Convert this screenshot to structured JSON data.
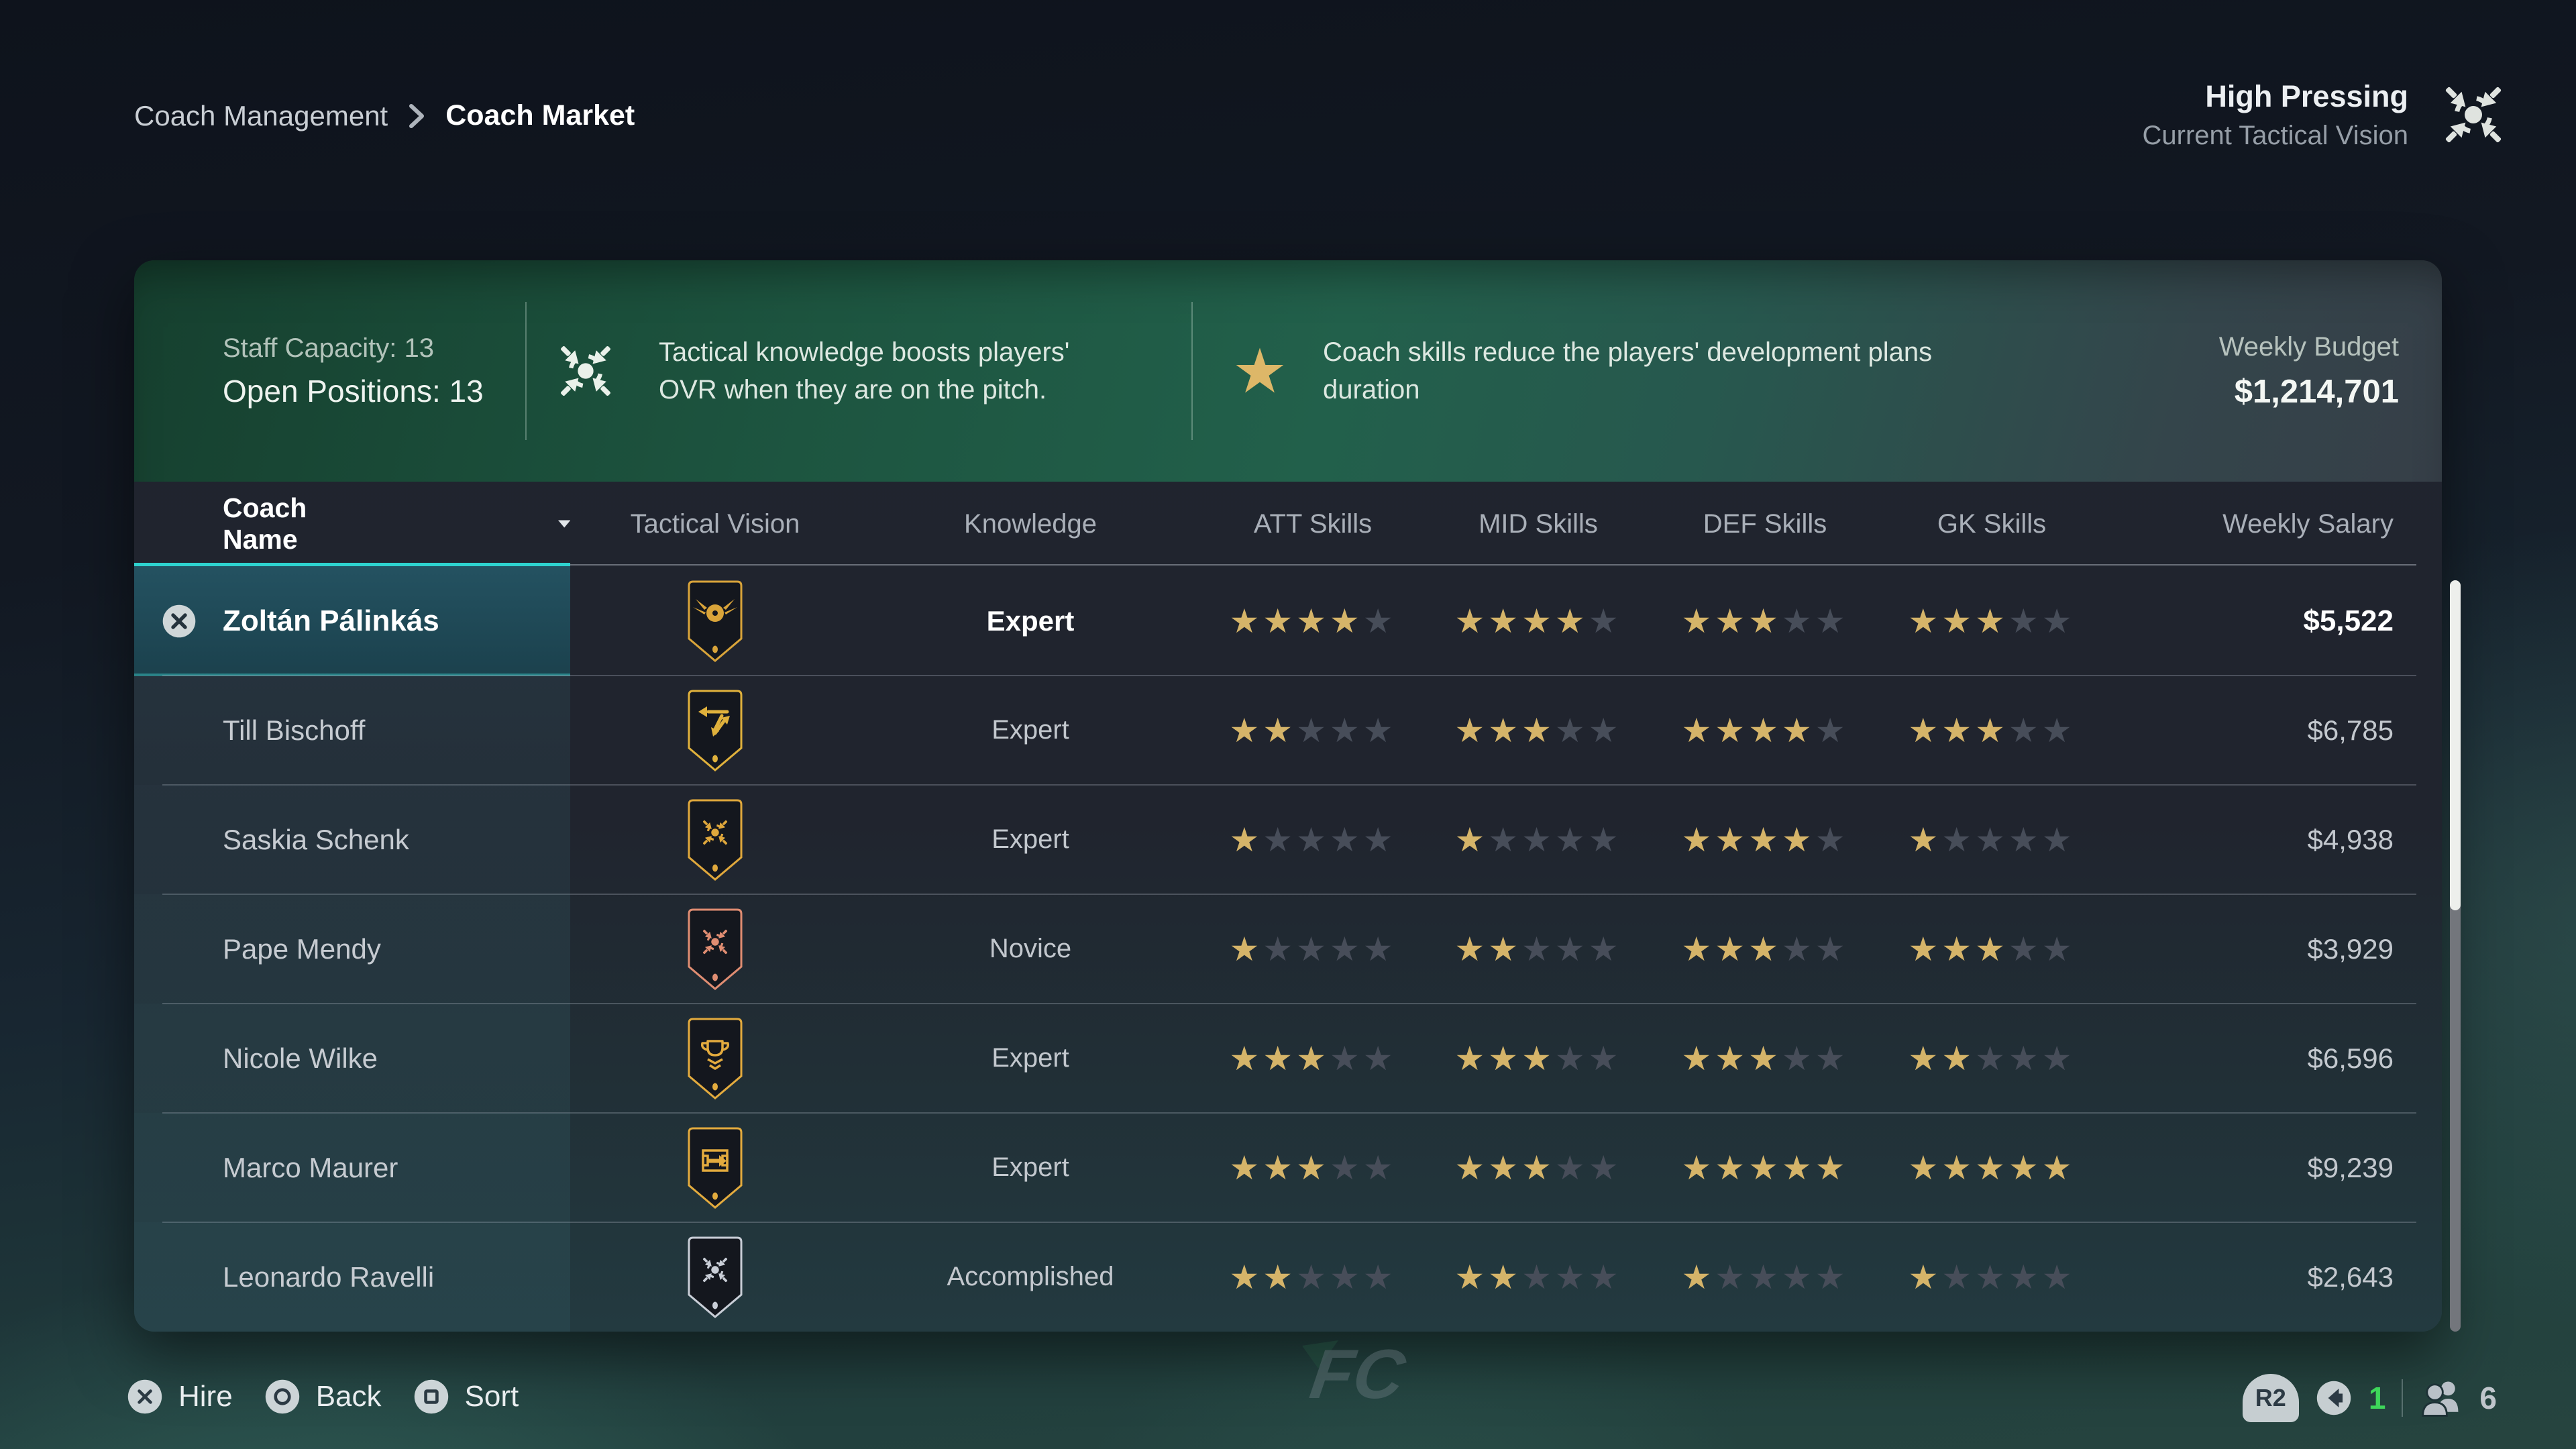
{
  "breadcrumb": {
    "parent": "Coach Management",
    "chevron_icon": "chevron-right-icon",
    "current": "Coach Market"
  },
  "tactical_vision": {
    "title": "High Pressing",
    "subtitle": "Current Tactical Vision",
    "icon": "high-pressing-icon",
    "icon_color": "#dfe3df"
  },
  "summary": {
    "staff_capacity_label": "Staff Capacity: 13",
    "open_positions_label": "Open Positions: 13",
    "tip1": {
      "icon": "high-pressing-icon",
      "text": "Tactical knowledge boosts players' OVR when they are on the pitch."
    },
    "tip2": {
      "icon": "star-icon",
      "text": "Coach skills reduce the players' development plans duration"
    },
    "weekly_budget_label": "Weekly Budget",
    "weekly_budget_value": "$1,214,701"
  },
  "table": {
    "columns": [
      "Coach Name",
      "Tactical Vision",
      "Knowledge",
      "ATT Skills",
      "MID Skills",
      "DEF Skills",
      "GK Skills",
      "Weekly Salary"
    ],
    "sorted_column": "Coach Name",
    "sort_icon": "sort-descending-icon",
    "max_stars": 5,
    "rows": [
      {
        "name": "Zoltán Pálinkás",
        "selected": true,
        "badge": {
          "icon": "winged-ball-icon",
          "color": "#d9a43a"
        },
        "knowledge": "Expert",
        "att": 4,
        "mid": 4,
        "def": 3,
        "gk": 3,
        "salary": "$5,522"
      },
      {
        "name": "Till Bischoff",
        "selected": false,
        "badge": {
          "icon": "counter-attack-arrows-icon",
          "color": "#e0b13c"
        },
        "knowledge": "Expert",
        "att": 2,
        "mid": 3,
        "def": 4,
        "gk": 3,
        "salary": "$6,785"
      },
      {
        "name": "Saskia Schenk",
        "selected": false,
        "badge": {
          "icon": "high-press-icon",
          "color": "#e0a83c"
        },
        "knowledge": "Expert",
        "att": 1,
        "mid": 1,
        "def": 4,
        "gk": 1,
        "salary": "$4,938"
      },
      {
        "name": "Pape Mendy",
        "selected": false,
        "badge": {
          "icon": "high-press-icon",
          "color": "#e08d72"
        },
        "knowledge": "Novice",
        "att": 1,
        "mid": 2,
        "def": 3,
        "gk": 3,
        "salary": "$3,929"
      },
      {
        "name": "Nicole Wilke",
        "selected": false,
        "badge": {
          "icon": "trophy-icon",
          "color": "#e3ab3e"
        },
        "knowledge": "Expert",
        "att": 3,
        "mid": 3,
        "def": 3,
        "gk": 2,
        "salary": "$6,596"
      },
      {
        "name": "Marco Maurer",
        "selected": false,
        "badge": {
          "icon": "pitch-arrow-icon",
          "color": "#e3ab3e"
        },
        "knowledge": "Expert",
        "att": 3,
        "mid": 3,
        "def": 5,
        "gk": 5,
        "salary": "$9,239"
      },
      {
        "name": "Leonardo Ravelli",
        "selected": false,
        "badge": {
          "icon": "high-press-icon",
          "color": "#c9ced7"
        },
        "knowledge": "Accomplished",
        "att": 2,
        "mid": 2,
        "def": 1,
        "gk": 1,
        "salary": "$2,643"
      }
    ]
  },
  "footer": {
    "actions": [
      {
        "icon": "cross-button-icon",
        "label": "Hire"
      },
      {
        "icon": "circle-button-icon",
        "label": "Back"
      },
      {
        "icon": "square-button-icon",
        "label": "Sort"
      }
    ],
    "right": {
      "trigger": "R2",
      "speaker_icon": "speaker-icon",
      "voice_channel": "1",
      "voice_color": "#3ed65a",
      "players_icon": "players-icon",
      "players_online": "6"
    }
  },
  "watermark": {
    "logo": "FC"
  },
  "colors": {
    "accent_teal": "#2ed3cf",
    "star_gold": "#d5b469",
    "star_empty": "#474d59",
    "selected_row": "#1d4550",
    "header_green": "#1f5a43",
    "panel_bg": "#20242f"
  }
}
